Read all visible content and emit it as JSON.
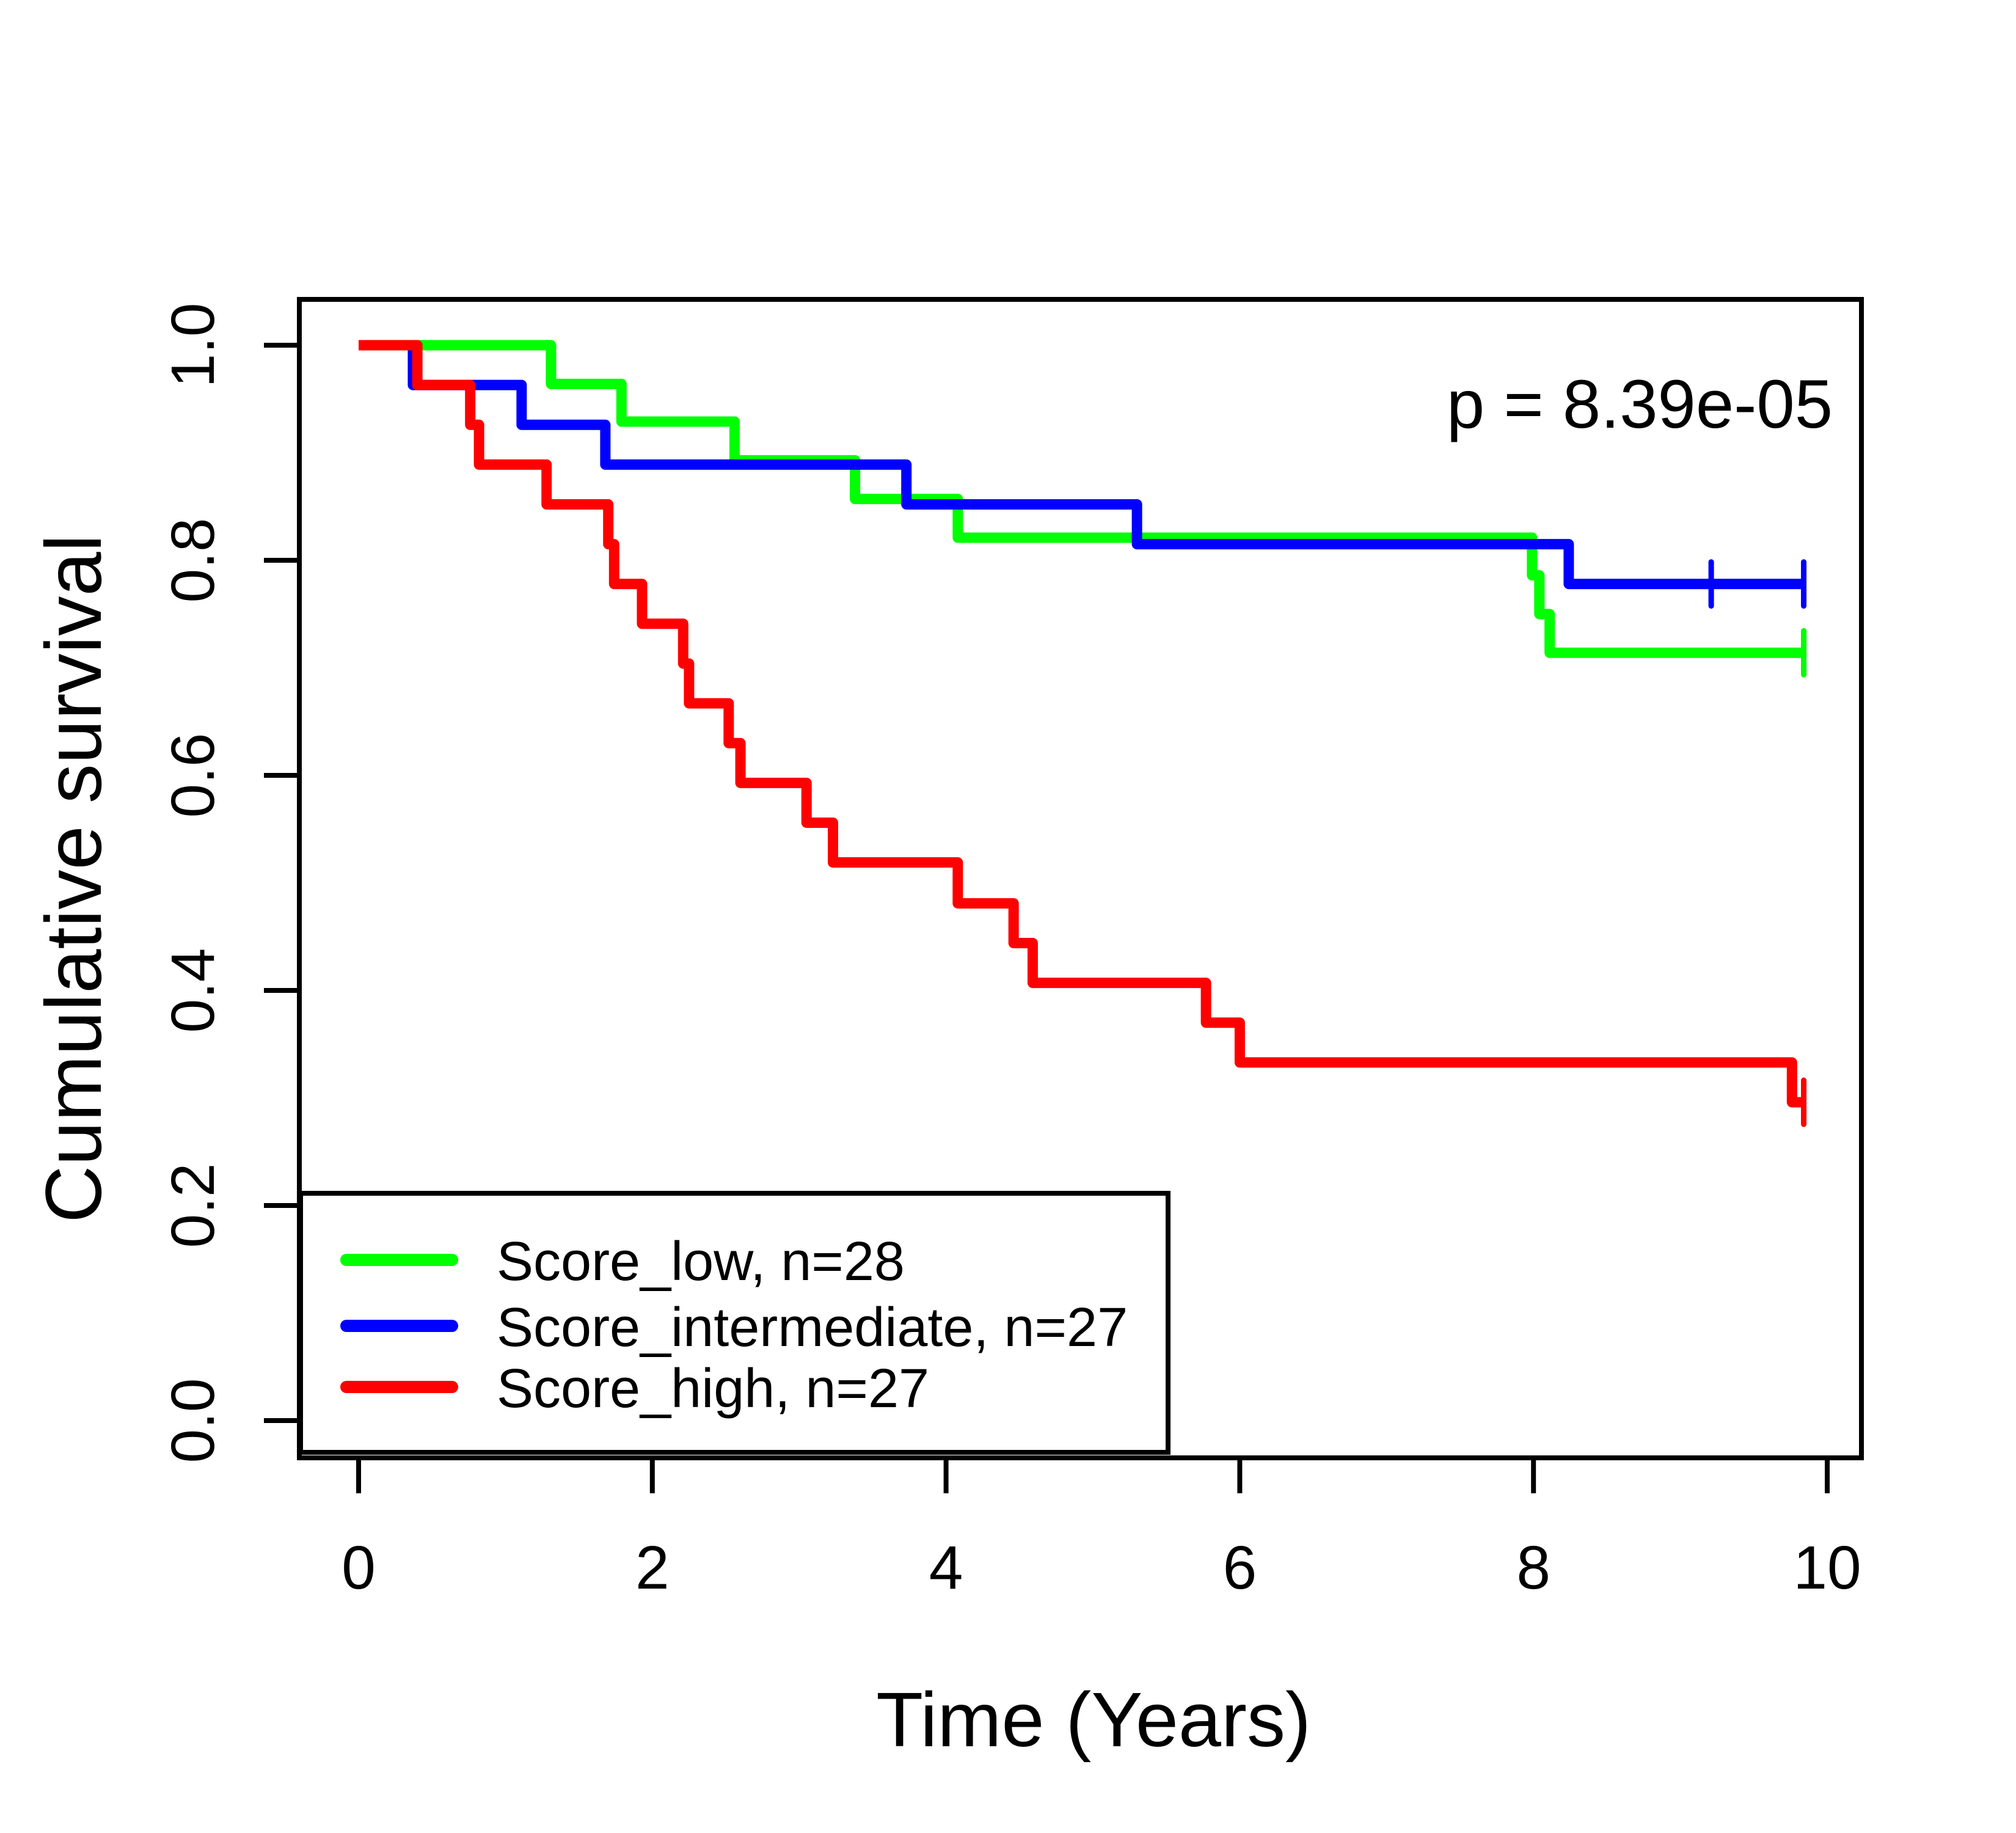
{
  "annotation": {
    "text": "p = 8.39e-05"
  },
  "axes": {
    "x": {
      "label": "Time (Years)",
      "ticks": [
        "0",
        "2",
        "4",
        "6",
        "8",
        "10"
      ]
    },
    "y": {
      "label": "Cumulative survival",
      "ticks": [
        "0.0",
        "0.2",
        "0.4",
        "0.6",
        "0.8",
        "1.0"
      ]
    }
  },
  "legend": {
    "items": [
      {
        "label": "Score_low, n=28",
        "color": "#00FF00"
      },
      {
        "label": "Score_intermediate, n=27",
        "color": "#0000FF"
      },
      {
        "label": "Score_high, n=27",
        "color": "#FF0000"
      }
    ]
  },
  "chart_data": {
    "type": "line",
    "subtype": "kaplan-meier-step",
    "title": "",
    "xlabel": "Time (Years)",
    "ylabel": "Cumulative survival",
    "annotation": "p = 8.39e-05",
    "xlim": [
      0,
      10
    ],
    "ylim": [
      0.0,
      1.0
    ],
    "xticks": [
      0,
      2,
      4,
      6,
      8,
      10
    ],
    "yticks": [
      0.0,
      0.2,
      0.4,
      0.6,
      0.8,
      1.0
    ],
    "grid": false,
    "legend_position": "bottom-left",
    "series": [
      {
        "name": "Score_low, n=28",
        "group": "Score_low",
        "n": 28,
        "color": "#00FF00",
        "steps": [
          [
            0,
            1.0
          ],
          [
            1.31,
            0.964
          ],
          [
            1.79,
            0.929
          ],
          [
            2.56,
            0.893
          ],
          [
            3.38,
            0.857
          ],
          [
            4.08,
            0.821
          ],
          [
            7.99,
            0.786
          ],
          [
            8.04,
            0.75
          ],
          [
            8.11,
            0.714
          ]
        ],
        "end_time": 9.84,
        "final_survival": 0.714,
        "censor_marks": [
          [
            9.84,
            0.714
          ]
        ]
      },
      {
        "name": "Score_intermediate, n=27",
        "group": "Score_intermediate",
        "n": 27,
        "color": "#0000FF",
        "steps": [
          [
            0,
            1.0
          ],
          [
            0.37,
            0.963
          ],
          [
            1.11,
            0.926
          ],
          [
            1.68,
            0.889
          ],
          [
            3.73,
            0.852
          ],
          [
            5.3,
            0.815
          ],
          [
            8.24,
            0.778
          ]
        ],
        "end_time": 9.84,
        "final_survival": 0.778,
        "censor_marks": [
          [
            9.21,
            0.778
          ],
          [
            9.84,
            0.778
          ]
        ]
      },
      {
        "name": "Score_high, n=27",
        "group": "Score_high",
        "n": 27,
        "color": "#FF0000",
        "steps": [
          [
            0,
            1.0
          ],
          [
            0.4,
            0.963
          ],
          [
            0.76,
            0.926
          ],
          [
            0.82,
            0.889
          ],
          [
            1.28,
            0.852
          ],
          [
            1.7,
            0.815
          ],
          [
            1.74,
            0.778
          ],
          [
            1.93,
            0.741
          ],
          [
            2.21,
            0.704
          ],
          [
            2.25,
            0.667
          ],
          [
            2.52,
            0.63
          ],
          [
            2.6,
            0.593
          ],
          [
            3.05,
            0.556
          ],
          [
            3.23,
            0.519
          ],
          [
            4.08,
            0.481
          ],
          [
            4.46,
            0.444
          ],
          [
            4.59,
            0.407
          ],
          [
            5.77,
            0.37
          ],
          [
            6.0,
            0.333
          ],
          [
            9.76,
            0.296
          ]
        ],
        "end_time": 9.84,
        "final_survival": 0.296,
        "censor_marks": [
          [
            9.84,
            0.296
          ]
        ]
      }
    ]
  }
}
